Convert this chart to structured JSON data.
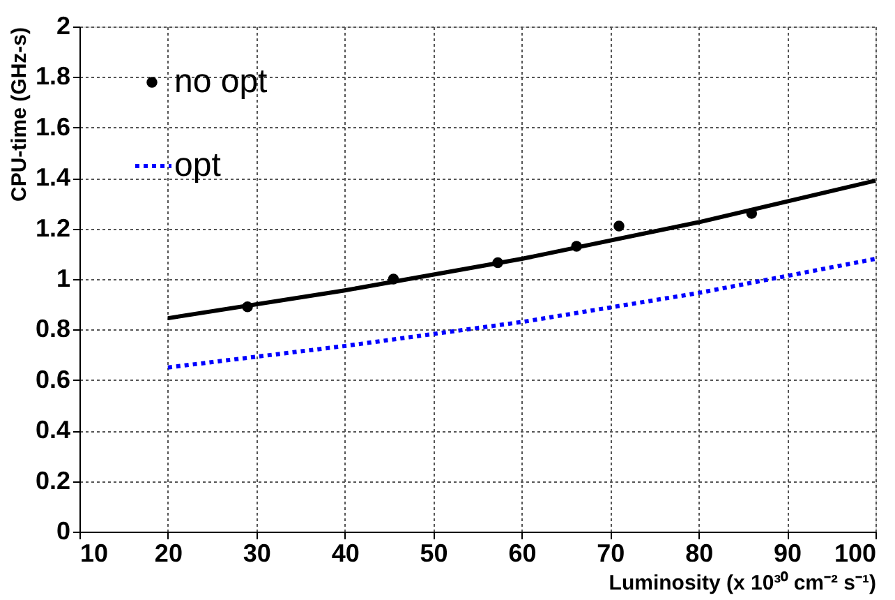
{
  "chart_data": {
    "type": "line",
    "xlabel": "Luminosity (x 10³⁰ cm⁻² s⁻¹)",
    "ylabel": "CPU-time (GHz-s)",
    "series": [
      {
        "name": "no opt",
        "type": "scatter",
        "color": "#000000",
        "marker": "circle",
        "x": [
          29,
          45.5,
          57.3,
          66.2,
          71,
          86
        ],
        "values": [
          0.89,
          1.0,
          1.065,
          1.13,
          1.21,
          1.26
        ]
      },
      {
        "color": "#000000",
        "line_style": "solid",
        "x": [
          20,
          40,
          60,
          80,
          100
        ],
        "values": [
          0.845,
          0.955,
          1.08,
          1.225,
          1.39
        ]
      },
      {
        "name": "opt",
        "type": "line",
        "color": "#0000ff",
        "line_style": "dotted",
        "x": [
          20,
          40,
          60,
          80,
          100
        ],
        "values": [
          0.65,
          0.735,
          0.83,
          0.945,
          1.08
        ]
      }
    ],
    "xlim": [
      10,
      100
    ],
    "xticks": [
      10,
      20,
      30,
      40,
      50,
      60,
      70,
      80,
      90,
      100
    ],
    "ylim": [
      0,
      2
    ],
    "yticks": [
      0,
      0.2,
      0.4,
      0.6,
      0.8,
      1,
      1.2,
      1.4,
      1.6,
      1.8,
      2
    ],
    "grid": true,
    "legend": "top left"
  }
}
